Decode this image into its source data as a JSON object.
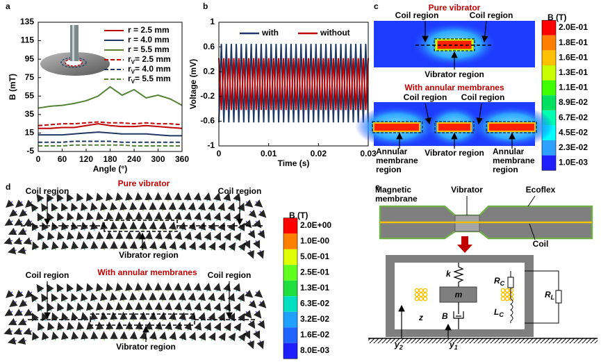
{
  "panel_labels": [
    "a",
    "b",
    "c",
    "d",
    "e"
  ],
  "chart_data": [
    {
      "type": "line",
      "xlabel": "Angle (°)",
      "ylabel": "B (mT)",
      "x": [
        0,
        30,
        60,
        90,
        120,
        150,
        180,
        210,
        240,
        270,
        300,
        330,
        360
      ],
      "xlim": [
        0,
        360
      ],
      "xticks": [
        0,
        60,
        120,
        180,
        240,
        300,
        360
      ],
      "ylim": [
        -5,
        135
      ],
      "yticks": [
        -5,
        15,
        35,
        55,
        75,
        95,
        115,
        135
      ],
      "legend": "upper right",
      "series": [
        {
          "name": "r = 2.5 mm",
          "color": "#c00000",
          "dash": false,
          "values": [
            20,
            20,
            21,
            21,
            23,
            25,
            23,
            22,
            22,
            23,
            22,
            21,
            20
          ]
        },
        {
          "name": "r = 4.0 mm",
          "color": "#1f3864",
          "dash": false,
          "values": [
            13,
            13,
            13,
            14,
            15,
            16,
            15,
            14,
            14,
            14,
            13,
            12,
            12
          ]
        },
        {
          "name": "r = 5.5 mm",
          "color": "#548235",
          "dash": false,
          "values": [
            42,
            44,
            45,
            47,
            50,
            55,
            65,
            56,
            62,
            53,
            56,
            52,
            45
          ]
        },
        {
          "name": "r",
          "name_sub": "V",
          "name_rest": "= 2.5 mm",
          "color": "#c00000",
          "dash": true,
          "values": [
            23,
            24,
            25,
            25,
            26,
            27,
            26,
            26,
            25,
            26,
            25,
            25,
            24
          ]
        },
        {
          "name": "r",
          "name_sub": "V",
          "name_rest": "= 4.0 mm",
          "color": "#1f3864",
          "dash": true,
          "values": [
            5,
            5,
            5,
            6,
            6,
            6,
            6,
            5,
            5,
            5,
            5,
            5,
            5
          ]
        },
        {
          "name": "r",
          "name_sub": "V",
          "name_rest": "= 5.5 mm",
          "color": "#548235",
          "dash": true,
          "values": [
            1,
            1,
            1,
            2,
            2,
            2,
            2,
            2,
            1,
            1,
            1,
            1,
            1
          ]
        }
      ]
    },
    {
      "type": "line",
      "xlabel": "Time (s)",
      "ylabel": "Voltage (mV)",
      "x": [
        0,
        0.0005,
        0.001,
        0.0015,
        0.002,
        0.0025,
        0.003,
        0.0035,
        0.004,
        0.0045,
        0.005,
        0.0055,
        0.006,
        0.0065,
        0.007,
        0.0075,
        0.008,
        0.0085,
        0.009,
        0.0095,
        0.01,
        0.0105,
        0.011,
        0.0115,
        0.012,
        0.0125,
        0.013,
        0.0135,
        0.014,
        0.0145,
        0.015,
        0.0155,
        0.016,
        0.0165,
        0.017,
        0.0175,
        0.018,
        0.0185,
        0.019,
        0.0195,
        0.02,
        0.0205,
        0.021,
        0.0215,
        0.022,
        0.0225,
        0.023,
        0.0235,
        0.024,
        0.0245,
        0.025,
        0.0255,
        0.026,
        0.0265,
        0.027,
        0.0275,
        0.028,
        0.0285,
        0.029,
        0.0295,
        0.03
      ],
      "xlim": [
        0,
        0.03
      ],
      "xticks": [
        0,
        0.01,
        0.02,
        0.03
      ],
      "ylim": [
        -1,
        1
      ],
      "yticks": [
        -1,
        -0.6,
        -0.2,
        0.2,
        0.6,
        1
      ],
      "legend": "upper center",
      "series": [
        {
          "name": "with",
          "color": "#1f3864",
          "dash": false,
          "values": [
            -0.62,
            0.65,
            -0.62,
            0.65,
            -0.62,
            0.65,
            -0.62,
            0.65,
            -0.62,
            0.65,
            -0.62,
            0.65,
            -0.62,
            0.65,
            -0.62,
            0.65,
            -0.62,
            0.65,
            -0.62,
            0.65,
            -0.62,
            0.65,
            -0.62,
            0.65,
            -0.62,
            0.65,
            -0.62,
            0.65,
            -0.62,
            0.65,
            -0.62,
            0.65,
            -0.62,
            0.65,
            -0.62,
            0.65,
            -0.62,
            0.65,
            -0.62,
            0.65,
            -0.62,
            0.65,
            -0.62,
            0.65,
            -0.62,
            0.65,
            -0.62,
            0.65,
            -0.62,
            0.65,
            -0.62,
            0.65,
            -0.62,
            0.65,
            -0.62,
            0.65,
            -0.62,
            0.65,
            -0.62,
            0.65,
            -0.62
          ]
        },
        {
          "name": "without",
          "color": "#c00000",
          "dash": false,
          "values": [
            0.42,
            -0.42,
            0.42,
            -0.42,
            0.42,
            -0.42,
            0.42,
            -0.42,
            0.42,
            -0.42,
            0.42,
            -0.42,
            0.42,
            -0.42,
            0.42,
            -0.42,
            0.42,
            -0.42,
            0.42,
            -0.42,
            0.42,
            -0.42,
            0.42,
            -0.42,
            0.42,
            -0.42,
            0.42,
            -0.42,
            0.42,
            -0.42,
            0.42,
            -0.42,
            0.42,
            -0.42,
            0.42,
            -0.42,
            0.42,
            -0.42,
            0.42,
            -0.42,
            0.42,
            -0.42,
            0.42,
            -0.42,
            0.42,
            -0.42,
            0.42,
            -0.42,
            0.42,
            -0.42,
            0.42,
            -0.42,
            0.42,
            -0.42,
            0.42,
            -0.42,
            0.42,
            -0.42,
            0.42,
            -0.42,
            0.42
          ]
        }
      ]
    }
  ],
  "panel_c": {
    "title_top": "Pure  vibrator",
    "coil_top": [
      "Coil region",
      "Coil region"
    ],
    "vibrator_top": "Vibrator region",
    "title_bottom": "With annular membranes",
    "coil_bottom": [
      "Coil region",
      "Coil region"
    ],
    "vibrator_bottom": "Vibrator region",
    "annular": [
      [
        "Annular",
        "membrane",
        "region"
      ],
      [
        "Annular",
        "membrane",
        "region"
      ]
    ],
    "colorbar_title": "B (T)",
    "colorbar_labels": [
      "2.0E-01",
      "1.8E-01",
      "1.6E-01",
      "1.3E-01",
      "1.1E-01",
      "8.9E-02",
      "6.7E-02",
      "4.5E-02",
      "2.3E-02",
      "1.0E-03"
    ]
  },
  "panel_d": {
    "title_top": "Pure  vibrator",
    "coil_top": [
      "Coil region",
      "Coil region"
    ],
    "vibrator_top": "Vibrator region",
    "title_bottom": "With annular membranes",
    "coil_bottom": [
      "Coil region",
      "Coil region"
    ],
    "vibrator_bottom": "Vibrator region",
    "colorbar_title": "B (T)",
    "colorbar_labels": [
      "2.0E+00",
      "1.0E-00",
      "5.0E-01",
      "2.5E-01",
      "1.3E-01",
      "6.3E-02",
      "3.2E-02",
      "1.6E-02",
      "8.0E-03"
    ]
  },
  "panel_e": {
    "magnetic_membrane": [
      "Magnetic",
      "membrane"
    ],
    "vibrator": "Vibrator",
    "ecoflex": "Ecoflex",
    "coil": "Coil",
    "k": "k",
    "m": "m",
    "B": "B",
    "z": "z",
    "RC": [
      "R",
      "C"
    ],
    "LC": [
      "L",
      "C"
    ],
    "RL": [
      "R",
      "L"
    ],
    "y2": [
      "y",
      "2"
    ],
    "y1": [
      "y",
      "1"
    ]
  }
}
